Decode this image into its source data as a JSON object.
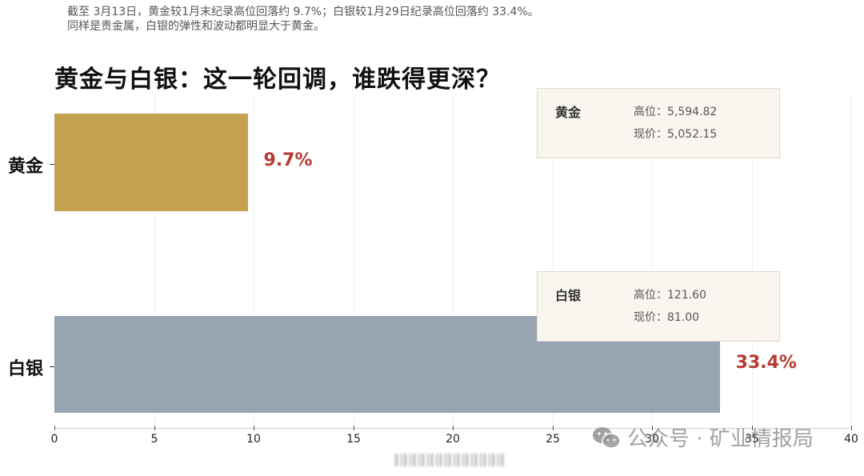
{
  "header": {
    "subtitle_line1": "截至 3月13日，黄金较1月末纪录高位回落约 9.7%；白银较1月29日纪录高位回落约 33.4%。",
    "subtitle_line2": "同样是贵金属，白银的弹性和波动都明显大于黄金。",
    "title": "黄金与白银：这一轮回调，谁跌得更深？"
  },
  "colors": {
    "gold_bar": "#c5a24f",
    "silver_bar": "#98a4b2",
    "value_label": "#b83a32",
    "annotation_bg": "#f9f6ef",
    "annotation_border": "#e2d8c6"
  },
  "annotations": [
    {
      "name": "黄金",
      "high": "高位：5,594.82",
      "current": "现价：5,052.15"
    },
    {
      "name": "白银",
      "high": "高位：121.60",
      "current": "现价：81.00"
    }
  ],
  "watermark": {
    "icon": "wechat-icon",
    "text": "公众号 · 矿业情报局"
  },
  "chart_data": {
    "type": "bar",
    "orientation": "horizontal",
    "title": "黄金与白银：这一轮回调，谁跌得更深？",
    "subtitle": "截至 3月13日，黄金较1月末纪录高位回落约 9.7%；白银较1月29日纪录高位回落约 33.4%。同样是贵金属，白银的弹性和波动都明显大于黄金。",
    "categories": [
      "黄金",
      "白银"
    ],
    "values": [
      9.7,
      33.4
    ],
    "value_labels": [
      "9.7%",
      "33.4%"
    ],
    "xlabel": "",
    "ylabel": "",
    "xlim": [
      0,
      40
    ],
    "xticks": [
      "0",
      "5",
      "10",
      "15",
      "20",
      "25",
      "30",
      "35",
      "40"
    ],
    "grid": "vertical dashed",
    "legend": "none",
    "annotations": [
      {
        "category": "黄金",
        "high": 5594.82,
        "current": 5052.15
      },
      {
        "category": "白银",
        "high": 121.6,
        "current": 81.0
      }
    ]
  }
}
